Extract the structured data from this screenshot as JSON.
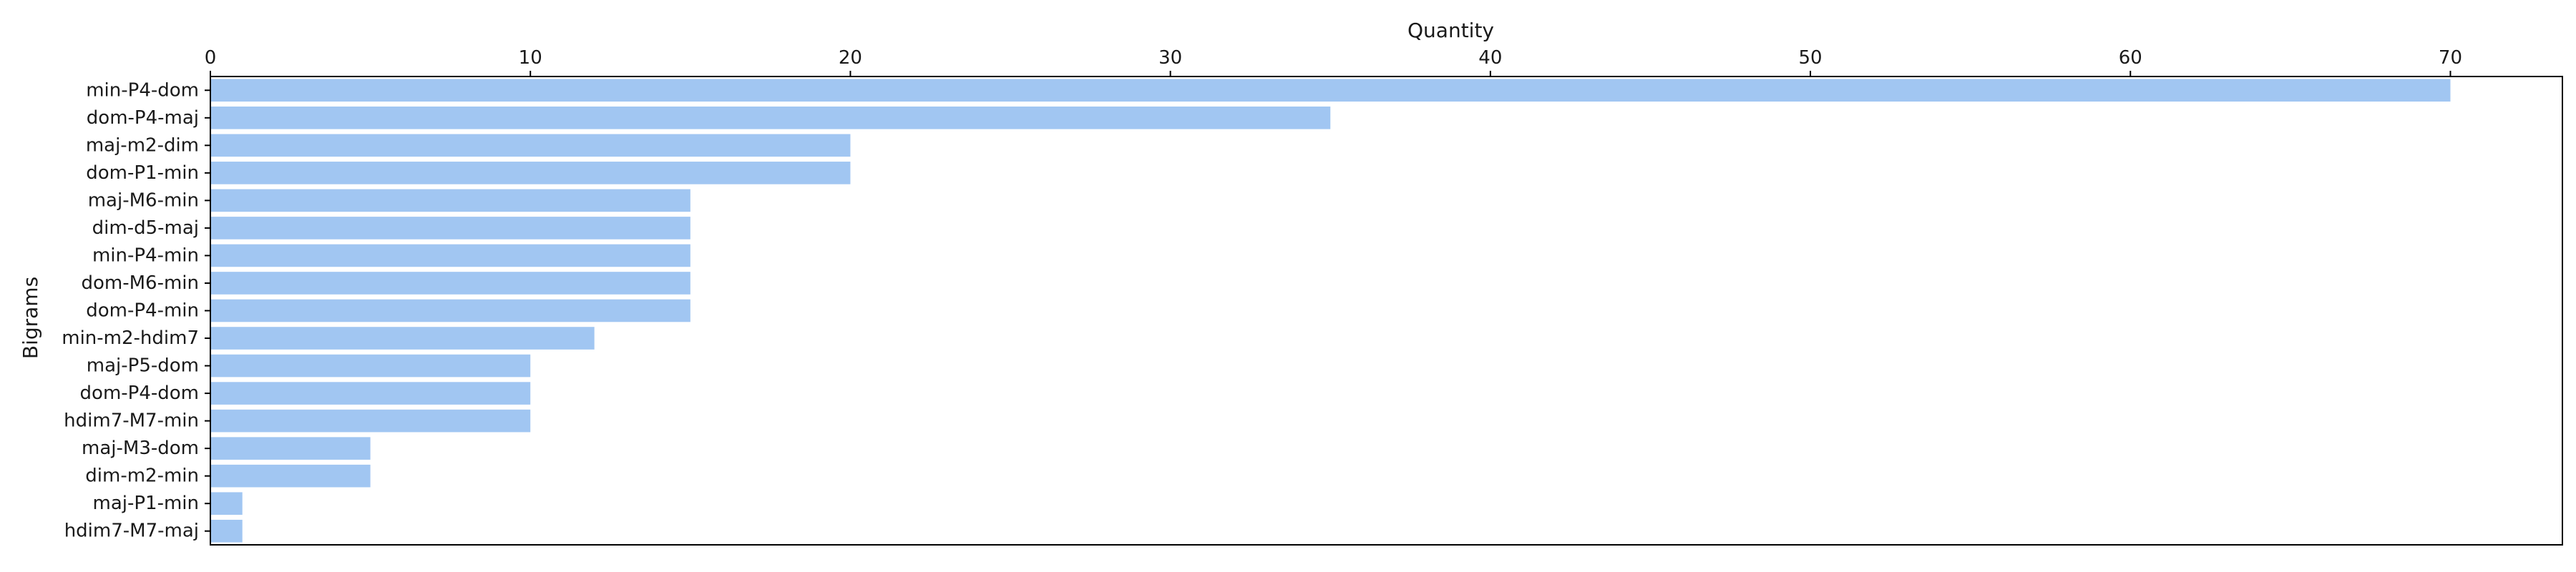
{
  "chart_data": {
    "type": "bar",
    "orientation": "horizontal",
    "title": "",
    "xlabel": "Quantity",
    "ylabel": "Bigrams",
    "xlim": [
      0,
      73.5
    ],
    "xticks": [
      0,
      10,
      20,
      30,
      40,
      50,
      60,
      70
    ],
    "bar_color": "#a1c6f2",
    "categories": [
      "min-P4-dom",
      "dom-P4-maj",
      "maj-m2-dim",
      "dom-P1-min",
      "maj-M6-min",
      "dim-d5-maj",
      "min-P4-min",
      "dom-M6-min",
      "dom-P4-min",
      "min-m2-hdim7",
      "maj-P5-dom",
      "dom-P4-dom",
      "hdim7-M7-min",
      "maj-M3-dom",
      "dim-m2-min",
      "maj-P1-min",
      "hdim7-M7-maj"
    ],
    "values": [
      70,
      35,
      20,
      20,
      15,
      15,
      15,
      15,
      15,
      12,
      10,
      10,
      10,
      5,
      5,
      1,
      1
    ],
    "grid": false,
    "legend": null
  }
}
